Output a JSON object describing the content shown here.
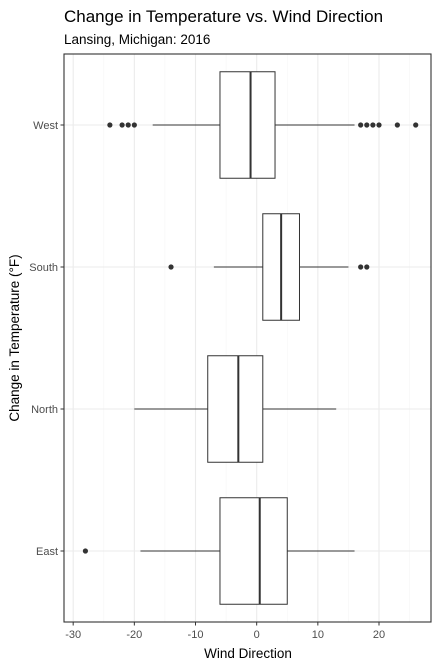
{
  "chart_data": {
    "type": "boxplot",
    "orientation": "horizontal",
    "title": "Change in Temperature vs. Wind Direction",
    "subtitle": "Lansing, Michigan: 2016",
    "xlabel": "Wind Direction",
    "ylabel": "Change in Temperature (°F)",
    "xlim": [
      -31.5,
      28.5
    ],
    "x_ticks": [
      -30,
      -20,
      -10,
      0,
      10,
      20
    ],
    "grid": true,
    "categories": [
      "East",
      "North",
      "South",
      "West"
    ],
    "boxes": [
      {
        "category": "East",
        "whisker_low": -19,
        "q1": -6,
        "median": 0.5,
        "q3": 5,
        "whisker_high": 16,
        "outliers": [
          -28
        ]
      },
      {
        "category": "North",
        "whisker_low": -20,
        "q1": -8,
        "median": -3,
        "q3": 1,
        "whisker_high": 13,
        "outliers": []
      },
      {
        "category": "South",
        "whisker_low": -7,
        "q1": 1,
        "median": 4,
        "q3": 7,
        "whisker_high": 15,
        "outliers": [
          -14,
          17,
          18
        ]
      },
      {
        "category": "West",
        "whisker_low": -17,
        "q1": -6,
        "median": -1,
        "q3": 3,
        "whisker_high": 16,
        "outliers": [
          -24,
          -22,
          -21,
          -20,
          17,
          18,
          19,
          20,
          23,
          26
        ]
      }
    ],
    "colors": {
      "panel_border": "#333333",
      "grid_major": "#ebebeb",
      "grid_minor": "#f5f5f5",
      "box_line": "#333333",
      "outlier": "#333333",
      "tick_text": "#4d4d4d"
    }
  }
}
